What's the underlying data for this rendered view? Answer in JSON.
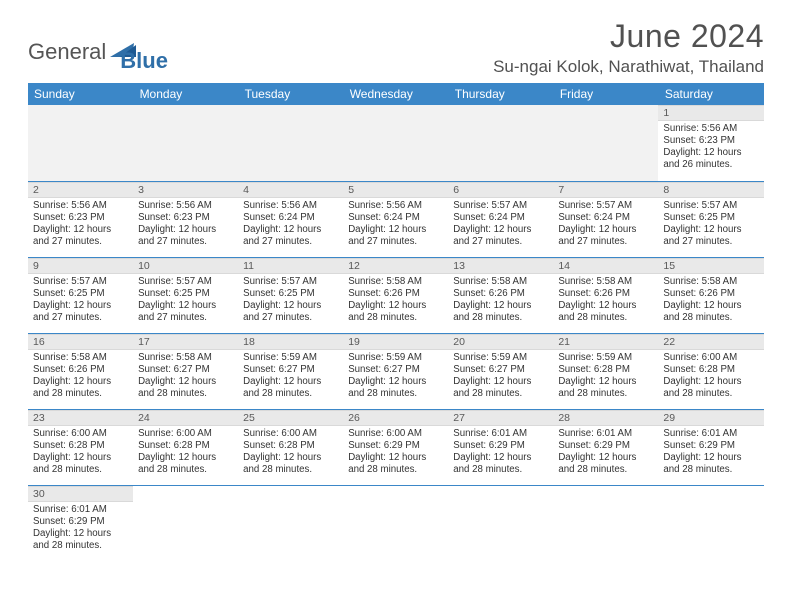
{
  "logo": {
    "textA": "General",
    "textB": "Blue"
  },
  "title": "June 2024",
  "location": "Su-ngai Kolok, Narathiwat, Thailand",
  "colors": {
    "header_bg": "#3b87c8",
    "header_fg": "#ffffff",
    "daynum_bg": "#e9e9e9",
    "border": "#3b87c8",
    "title_color": "#515151",
    "logo_gray": "#555555",
    "logo_blue": "#2f6fa8"
  },
  "weekdays": [
    "Sunday",
    "Monday",
    "Tuesday",
    "Wednesday",
    "Thursday",
    "Friday",
    "Saturday"
  ],
  "weeks": [
    [
      null,
      null,
      null,
      null,
      null,
      null,
      {
        "n": "1",
        "sr": "5:56 AM",
        "ss": "6:23 PM",
        "dl": "12 hours and 26 minutes."
      }
    ],
    [
      {
        "n": "2",
        "sr": "5:56 AM",
        "ss": "6:23 PM",
        "dl": "12 hours and 27 minutes."
      },
      {
        "n": "3",
        "sr": "5:56 AM",
        "ss": "6:23 PM",
        "dl": "12 hours and 27 minutes."
      },
      {
        "n": "4",
        "sr": "5:56 AM",
        "ss": "6:24 PM",
        "dl": "12 hours and 27 minutes."
      },
      {
        "n": "5",
        "sr": "5:56 AM",
        "ss": "6:24 PM",
        "dl": "12 hours and 27 minutes."
      },
      {
        "n": "6",
        "sr": "5:57 AM",
        "ss": "6:24 PM",
        "dl": "12 hours and 27 minutes."
      },
      {
        "n": "7",
        "sr": "5:57 AM",
        "ss": "6:24 PM",
        "dl": "12 hours and 27 minutes."
      },
      {
        "n": "8",
        "sr": "5:57 AM",
        "ss": "6:25 PM",
        "dl": "12 hours and 27 minutes."
      }
    ],
    [
      {
        "n": "9",
        "sr": "5:57 AM",
        "ss": "6:25 PM",
        "dl": "12 hours and 27 minutes."
      },
      {
        "n": "10",
        "sr": "5:57 AM",
        "ss": "6:25 PM",
        "dl": "12 hours and 27 minutes."
      },
      {
        "n": "11",
        "sr": "5:57 AM",
        "ss": "6:25 PM",
        "dl": "12 hours and 27 minutes."
      },
      {
        "n": "12",
        "sr": "5:58 AM",
        "ss": "6:26 PM",
        "dl": "12 hours and 28 minutes."
      },
      {
        "n": "13",
        "sr": "5:58 AM",
        "ss": "6:26 PM",
        "dl": "12 hours and 28 minutes."
      },
      {
        "n": "14",
        "sr": "5:58 AM",
        "ss": "6:26 PM",
        "dl": "12 hours and 28 minutes."
      },
      {
        "n": "15",
        "sr": "5:58 AM",
        "ss": "6:26 PM",
        "dl": "12 hours and 28 minutes."
      }
    ],
    [
      {
        "n": "16",
        "sr": "5:58 AM",
        "ss": "6:26 PM",
        "dl": "12 hours and 28 minutes."
      },
      {
        "n": "17",
        "sr": "5:58 AM",
        "ss": "6:27 PM",
        "dl": "12 hours and 28 minutes."
      },
      {
        "n": "18",
        "sr": "5:59 AM",
        "ss": "6:27 PM",
        "dl": "12 hours and 28 minutes."
      },
      {
        "n": "19",
        "sr": "5:59 AM",
        "ss": "6:27 PM",
        "dl": "12 hours and 28 minutes."
      },
      {
        "n": "20",
        "sr": "5:59 AM",
        "ss": "6:27 PM",
        "dl": "12 hours and 28 minutes."
      },
      {
        "n": "21",
        "sr": "5:59 AM",
        "ss": "6:28 PM",
        "dl": "12 hours and 28 minutes."
      },
      {
        "n": "22",
        "sr": "6:00 AM",
        "ss": "6:28 PM",
        "dl": "12 hours and 28 minutes."
      }
    ],
    [
      {
        "n": "23",
        "sr": "6:00 AM",
        "ss": "6:28 PM",
        "dl": "12 hours and 28 minutes."
      },
      {
        "n": "24",
        "sr": "6:00 AM",
        "ss": "6:28 PM",
        "dl": "12 hours and 28 minutes."
      },
      {
        "n": "25",
        "sr": "6:00 AM",
        "ss": "6:28 PM",
        "dl": "12 hours and 28 minutes."
      },
      {
        "n": "26",
        "sr": "6:00 AM",
        "ss": "6:29 PM",
        "dl": "12 hours and 28 minutes."
      },
      {
        "n": "27",
        "sr": "6:01 AM",
        "ss": "6:29 PM",
        "dl": "12 hours and 28 minutes."
      },
      {
        "n": "28",
        "sr": "6:01 AM",
        "ss": "6:29 PM",
        "dl": "12 hours and 28 minutes."
      },
      {
        "n": "29",
        "sr": "6:01 AM",
        "ss": "6:29 PM",
        "dl": "12 hours and 28 minutes."
      }
    ],
    [
      {
        "n": "30",
        "sr": "6:01 AM",
        "ss": "6:29 PM",
        "dl": "12 hours and 28 minutes."
      },
      null,
      null,
      null,
      null,
      null,
      null
    ]
  ],
  "labels": {
    "sunrise": "Sunrise:",
    "sunset": "Sunset:",
    "daylight": "Daylight:"
  }
}
